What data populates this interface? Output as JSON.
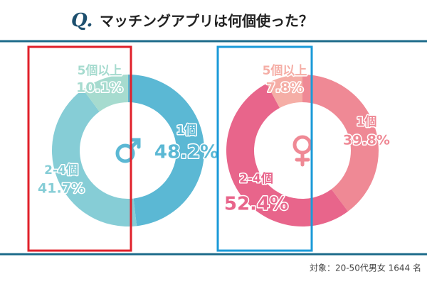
{
  "title_mark": "Q.",
  "title": "マッチングアプリは何個使った？",
  "note": "対象：20-50代男女 1644 名",
  "chart_data": [
    {
      "type": "pie",
      "donut": true,
      "categories": [
        "1個",
        "2-4個",
        "5個以上"
      ],
      "values": [
        48.2,
        41.7,
        10.1
      ],
      "value_labels": [
        "48.2%",
        "41.7%",
        "10.1%"
      ],
      "colors": [
        "#5bb8d4",
        "#86cdd6",
        "#a6dbcf"
      ],
      "symbol": "male",
      "frame_color": "#e0202a"
    },
    {
      "type": "pie",
      "donut": true,
      "categories": [
        "1個",
        "2-4個",
        "5個以上"
      ],
      "values": [
        39.8,
        52.4,
        7.8
      ],
      "value_labels": [
        "39.8%",
        "52.4%",
        "7.8%"
      ],
      "colors": [
        "#ef8995",
        "#e8658b",
        "#f5aea6"
      ],
      "symbol": "female",
      "frame_color": "#1a9ad8"
    }
  ]
}
